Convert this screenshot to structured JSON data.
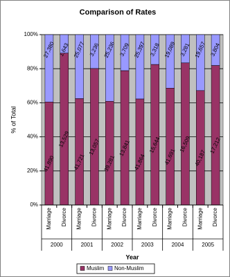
{
  "chart_data": {
    "type": "bar",
    "stacking": "percent",
    "title": "Comparison of Rates",
    "x_label": "Year",
    "y_label": "% of Total",
    "categories": [
      "Marriage",
      "Divorce",
      "Marriage",
      "Divorce",
      "Marriage",
      "Divorce",
      "Marriage",
      "Divorce",
      "Marriage",
      "Divorce",
      "Marriage",
      "Divorce"
    ],
    "groups": [
      "2000",
      "2001",
      "2002",
      "2003",
      "2004",
      "2005"
    ],
    "series": [
      {
        "name": "Muslim",
        "color": "#993366",
        "label_color": "#ffffff",
        "values": [
          41890,
          13529,
          41721,
          13057,
          39281,
          13841,
          41864,
          15644,
          41691,
          16509,
          40187,
          17212
        ],
        "value_labels": [
          "41,890",
          "13,529",
          "41,721",
          "13,057",
          "39,281",
          "13,841",
          "41,864",
          "15,644",
          "41,691",
          "16,509",
          "40,187",
          "17,212"
        ]
      },
      {
        "name": "Non-Muslim",
        "color": "#9999ff",
        "label_color": "#990033",
        "values": [
          27380,
          1643,
          25077,
          3236,
          25236,
          3709,
          25397,
          3318,
          19089,
          3281,
          19657,
          3804
        ],
        "value_labels": [
          "27,380",
          "1,643",
          "25,077",
          "3,236",
          "25,236",
          "3,709",
          "25,397",
          "3,318",
          "19,089",
          "3,281",
          "19,657",
          "3,804"
        ]
      }
    ],
    "ylim": [
      0,
      100
    ],
    "yticks": [
      {
        "value": 0,
        "label": "0%"
      },
      {
        "value": 20,
        "label": "20%"
      },
      {
        "value": 40,
        "label": "40%"
      },
      {
        "value": 60,
        "label": "60%"
      },
      {
        "value": 80,
        "label": "80%"
      },
      {
        "value": 100,
        "label": "100%"
      }
    ],
    "grid": true,
    "legend": "bottom",
    "plot_background": "#c0c0c0"
  }
}
